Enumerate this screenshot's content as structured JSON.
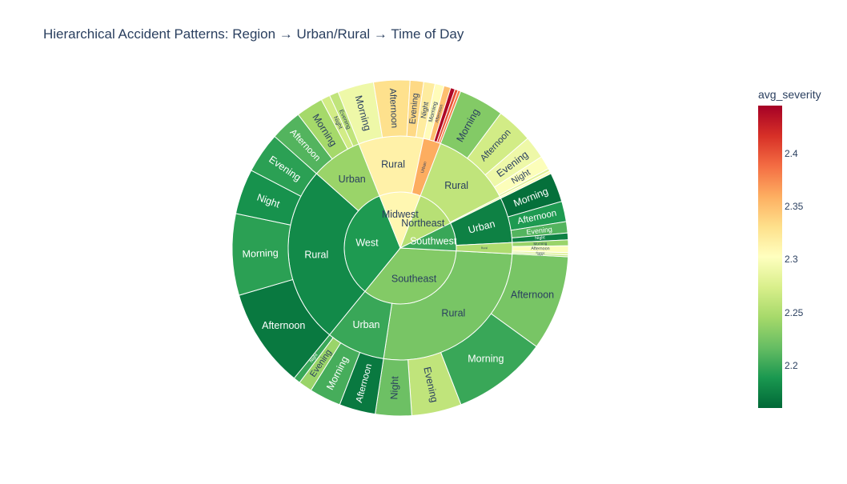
{
  "chart_data": {
    "type": "sunburst",
    "title": "Hierarchical Accident Patterns: Region → Urban/Rural → Time of Day",
    "colorbar": {
      "title": "avg_severity",
      "min": 2.16,
      "max": 2.445,
      "ticks": [
        "2.2",
        "2.25",
        "2.3",
        "2.35",
        "2.4"
      ],
      "tick_values": [
        2.2,
        2.25,
        2.3,
        2.35,
        2.4
      ],
      "colorscale": [
        "#006837",
        "#1a9850",
        "#66bd63",
        "#a6d96a",
        "#d9ef8b",
        "#ffffbf",
        "#fee08b",
        "#fdae61",
        "#f46d43",
        "#d73027",
        "#a50026"
      ]
    },
    "hierarchy": [
      {
        "name": "Southeast",
        "severity": 2.23,
        "children": [
          {
            "name": "Rural",
            "severity": 2.225,
            "children": [
              {
                "name": "Afternoon",
                "value": 21,
                "severity": 2.225
              },
              {
                "name": "Morning",
                "value": 21,
                "severity": 2.2
              },
              {
                "name": "Evening",
                "value": 11,
                "severity": 2.26
              },
              {
                "name": "Night",
                "value": 8,
                "severity": 2.22
              }
            ]
          },
          {
            "name": "Urban",
            "severity": 2.2,
            "children": [
              {
                "name": "Afternoon",
                "value": 8,
                "severity": 2.17
              },
              {
                "name": "Morning",
                "value": 7,
                "severity": 2.205
              },
              {
                "name": "Evening",
                "value": 3,
                "severity": 2.24
              },
              {
                "name": "Night",
                "value": 1.5,
                "severity": 2.2
              }
            ]
          }
        ]
      },
      {
        "name": "West",
        "severity": 2.19,
        "children": [
          {
            "name": "Rural",
            "severity": 2.18,
            "children": [
              {
                "name": "Afternoon",
                "value": 22,
                "severity": 2.17
              },
              {
                "name": "Morning",
                "value": 18,
                "severity": 2.195
              },
              {
                "name": "Night",
                "value": 10,
                "severity": 2.185
              },
              {
                "name": "Evening",
                "value": 9,
                "severity": 2.195
              }
            ]
          },
          {
            "name": "Urban",
            "severity": 2.24,
            "children": [
              {
                "name": "Afternoon",
                "value": 7,
                "severity": 2.21
              },
              {
                "name": "Morning",
                "value": 6,
                "severity": 2.245
              },
              {
                "name": "Night",
                "value": 2,
                "severity": 2.27
              },
              {
                "name": "Evening",
                "value": 2,
                "severity": 2.26
              }
            ]
          }
        ]
      },
      {
        "name": "Midwest",
        "severity": 2.31,
        "children": [
          {
            "name": "Rural",
            "severity": 2.315,
            "children": [
              {
                "name": "Morning",
                "value": 8,
                "severity": 2.29
              },
              {
                "name": "Afternoon",
                "value": 8,
                "severity": 2.33
              },
              {
                "name": "Evening",
                "value": 3,
                "severity": 2.335
              },
              {
                "name": "Night",
                "value": 2.5,
                "severity": 2.32
              }
            ]
          },
          {
            "name": "Urban",
            "severity": 2.36,
            "children": [
              {
                "name": "Morning",
                "value": 2,
                "severity": 2.305
              },
              {
                "name": "Afternoon",
                "value": 1.5,
                "severity": 2.35
              },
              {
                "name": "",
                "value": 1,
                "severity": 2.44
              },
              {
                "name": "",
                "value": 0.7,
                "severity": 2.4
              },
              {
                "name": "",
                "value": 0.6,
                "severity": 2.38
              }
            ]
          }
        ]
      },
      {
        "name": "Northeast",
        "severity": 2.255,
        "children": [
          {
            "name": "Rural",
            "severity": 2.26,
            "children": [
              {
                "name": "Morning",
                "value": 10,
                "severity": 2.23
              },
              {
                "name": "Afternoon",
                "value": 8,
                "severity": 2.27
              },
              {
                "name": "Evening",
                "value": 5,
                "severity": 2.29
              },
              {
                "name": "Night",
                "value": 3,
                "severity": 2.3
              },
              {
                "name": "",
                "value": 0.6,
                "severity": 2.28
              }
            ]
          },
          {
            "name": "",
            "severity": 2.29,
            "children": [
              {
                "name": "",
                "value": 0.6,
                "severity": 2.3
              }
            ]
          }
        ]
      },
      {
        "name": "Southwest",
        "severity": 2.2,
        "children": [
          {
            "name": "Urban",
            "severity": 2.175,
            "children": [
              {
                "name": "Morning",
                "value": 6.5,
                "severity": 2.165
              },
              {
                "name": "Afternoon",
                "value": 4.5,
                "severity": 2.19
              },
              {
                "name": "Evening",
                "value": 2.5,
                "severity": 2.21
              },
              {
                "name": "Night",
                "value": 1.5,
                "severity": 2.175
              }
            ]
          },
          {
            "name": "Rural",
            "severity": 2.25,
            "children": [
              {
                "name": "Morning",
                "value": 1.3,
                "severity": 2.24
              },
              {
                "name": "Afternoon",
                "value": 1.5,
                "severity": 2.3
              },
              {
                "name": "Evening",
                "value": 0.5,
                "severity": 2.28
              },
              {
                "name": "Night",
                "value": 0.4,
                "severity": 2.26
              }
            ]
          }
        ]
      }
    ]
  }
}
